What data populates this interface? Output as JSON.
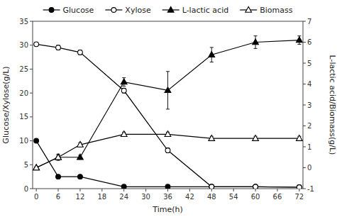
{
  "chart_data": {
    "type": "line",
    "xlabel": "Time(h)",
    "ylabel": "Glucose/Xylose(g/L)",
    "y2label": "L-lactic acid/Biomass(g/L)",
    "x": [
      0,
      6,
      12,
      24,
      36,
      48,
      60,
      72
    ],
    "series": [
      {
        "name": "Glucose",
        "color": "black",
        "marker": "circle",
        "line_style": "solid",
        "values": [
          10.0,
          2.5,
          2.5,
          0.4,
          0.4,
          0.4,
          0.4,
          0.3
        ],
        "yerr": [
          0.2,
          0.3,
          0.3,
          0.05,
          0.05,
          0.05,
          0.05,
          0.05
        ]
      },
      {
        "name": "Xylose",
        "color": "black",
        "marker": "open-circle",
        "line_style": "solid",
        "values": [
          30.2,
          29.5,
          28.5,
          20.5,
          8.0,
          0.4,
          0.4,
          0.3
        ],
        "yerr": [
          0.4,
          0.5,
          0.5,
          0.5,
          0.5,
          0.1,
          0.1,
          0.1
        ]
      },
      {
        "name": "L-lactic acid",
        "color": "black",
        "marker": "triangle",
        "line_style": "solid",
        "axis": "y2",
        "values": [
          0.0,
          0.5,
          0.5,
          4.1,
          3.7,
          5.4,
          6.0,
          6.1
        ],
        "yerr": [
          0.05,
          0.15,
          0.1,
          0.2,
          0.9,
          0.35,
          0.3,
          0.2
        ]
      },
      {
        "name": "Biomass",
        "color": "black",
        "marker": "open-triangle",
        "line_style": "solid",
        "axis": "y2",
        "values": [
          0.0,
          0.5,
          1.1,
          1.6,
          1.6,
          1.4,
          1.4,
          1.4
        ],
        "yerr": [
          0.02,
          0.1,
          0.1,
          0.1,
          0.1,
          0.1,
          0.1,
          0.1
        ]
      }
    ],
    "xlim": [
      -1,
      73
    ],
    "xticks": [
      0,
      6,
      12,
      18,
      24,
      30,
      36,
      42,
      48,
      54,
      60,
      66,
      72
    ],
    "ylim": [
      0,
      35
    ],
    "yticks": [
      0,
      5,
      10,
      15,
      20,
      25,
      30,
      35
    ],
    "y2lim": [
      -1,
      7
    ],
    "y2ticks": [
      -1,
      0,
      1,
      2,
      3,
      4,
      5,
      6,
      7
    ],
    "grid": false,
    "legend": "top"
  }
}
